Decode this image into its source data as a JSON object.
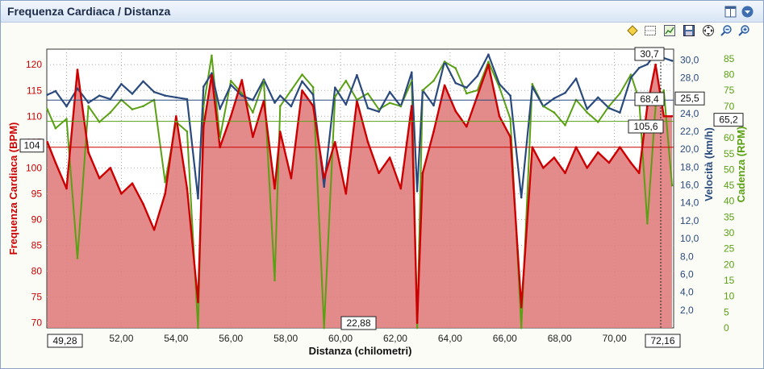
{
  "window": {
    "title": "Frequenza Cardiaca / Distanza"
  },
  "icons": [
    "layout-icon",
    "dropdown-icon",
    "diamond-marker-icon",
    "grid-icon",
    "chart-image-icon",
    "save-icon",
    "move-icon",
    "zoom-out-icon",
    "zoom-in-icon"
  ],
  "colors": {
    "heart_rate": "#cc0000",
    "heart_rate_fill": "#e07d7d",
    "speed": "#2a4a7e",
    "cadence": "#5aa014",
    "cadence_overlap": "#8a5a10",
    "background": "#fbfcf6"
  },
  "chart_data": {
    "type": "line",
    "title": "",
    "xlabel": "Distanza (chilometri)",
    "xlim": [
      49.28,
      72.16
    ],
    "x_ticks": [
      "50,00",
      "52,00",
      "54,00",
      "56,00",
      "58,00",
      "60,00",
      "62,00",
      "64,00",
      "66,00",
      "68,00",
      "70,00"
    ],
    "x_range_labels": {
      "start": "49,28",
      "end": "72,16"
    },
    "grid": true,
    "axes": {
      "heart_rate": {
        "label": "Frequenza Cardiaca (BPM)",
        "side": "left",
        "range": [
          69,
          123
        ],
        "ticks": [
          "70",
          "75",
          "80",
          "85",
          "90",
          "95",
          "100",
          "105",
          "110",
          "115",
          "120"
        ]
      },
      "speed": {
        "label": "Velocità (km/h)",
        "side": "right",
        "range": [
          0,
          31.2
        ],
        "ticks": [
          "2,0",
          "4,0",
          "6,0",
          "8,0",
          "10,0",
          "12,0",
          "14,0",
          "16,0",
          "18,0",
          "20,0",
          "22,0",
          "24,0",
          "26,0",
          "28,0",
          "30,0"
        ]
      },
      "cadence": {
        "label": "Cadenza (RPM)",
        "side": "right",
        "range": [
          0,
          88
        ],
        "ticks": [
          "0",
          "5",
          "10",
          "15",
          "20",
          "25",
          "30",
          "35",
          "40",
          "45",
          "50",
          "55",
          "60",
          "65",
          "70",
          "75",
          "80",
          "85"
        ]
      }
    },
    "markers": {
      "hr_avg": "104",
      "speed_avg": "25,5",
      "cadence_avg": "65,2",
      "bottom_label": "22,88",
      "cursor_speed": "30,7",
      "cursor_cadence": "68,4",
      "cursor_hr": "105,6"
    },
    "series": [
      {
        "name": "Frequenza Cardiaca",
        "axis": "heart_rate",
        "x": [
          49.3,
          49.6,
          50.0,
          50.4,
          50.8,
          51.2,
          51.6,
          52.0,
          52.4,
          52.8,
          53.2,
          53.6,
          54.0,
          54.4,
          54.8,
          55.0,
          55.3,
          55.6,
          56.0,
          56.4,
          56.8,
          57.2,
          57.6,
          57.8,
          58.2,
          58.6,
          59.0,
          59.4,
          59.8,
          60.2,
          60.6,
          61.0,
          61.4,
          61.8,
          62.2,
          62.6,
          62.8,
          63.0,
          63.4,
          63.8,
          64.2,
          64.6,
          65.0,
          65.4,
          65.8,
          66.2,
          66.6,
          67.0,
          67.4,
          67.8,
          68.2,
          68.6,
          69.0,
          69.4,
          69.8,
          70.2,
          70.6,
          70.9,
          71.2,
          71.5,
          71.8,
          72.1
        ],
        "values": [
          105,
          101,
          96,
          119,
          103,
          98,
          100,
          95,
          97,
          93,
          88,
          95,
          110,
          96,
          74,
          108,
          118,
          104,
          110,
          117,
          106,
          113,
          96,
          107,
          98,
          115,
          112,
          98,
          105,
          95,
          113,
          105,
          99,
          102,
          96,
          112,
          70,
          99,
          107,
          116,
          111,
          108,
          114,
          120,
          110,
          106,
          73,
          104,
          100,
          102,
          99,
          104,
          100,
          103,
          101,
          104,
          101,
          99,
          112,
          120,
          110,
          110
        ]
      },
      {
        "name": "Velocità",
        "axis": "speed",
        "x": [
          49.3,
          49.6,
          50.0,
          50.4,
          50.8,
          51.2,
          51.6,
          52.0,
          52.4,
          52.8,
          53.2,
          53.6,
          54.0,
          54.4,
          54.8,
          55.0,
          55.3,
          55.6,
          56.0,
          56.4,
          56.8,
          57.2,
          57.6,
          57.8,
          58.2,
          58.6,
          59.0,
          59.4,
          59.8,
          60.2,
          60.6,
          61.0,
          61.4,
          61.8,
          62.2,
          62.6,
          62.8,
          63.0,
          63.4,
          63.8,
          64.2,
          64.6,
          65.0,
          65.4,
          65.8,
          66.2,
          66.6,
          67.0,
          67.4,
          67.8,
          68.2,
          68.6,
          69.0,
          69.4,
          69.8,
          70.2,
          70.6,
          70.9,
          71.2,
          71.5,
          71.8,
          72.1
        ],
        "values": [
          26.1,
          26.5,
          24.8,
          26.8,
          25.2,
          26.0,
          25.6,
          27.3,
          26.2,
          27.6,
          26.4,
          26.0,
          25.8,
          25.6,
          14.5,
          27.0,
          28.5,
          24.5,
          27.2,
          26.0,
          25.5,
          27.8,
          25.2,
          26.0,
          24.8,
          27.6,
          26.1,
          15.8,
          26.9,
          25.0,
          28.3,
          24.6,
          24.2,
          26.4,
          24.8,
          28.6,
          15.3,
          26.6,
          24.9,
          29.8,
          27.4,
          26.9,
          28.2,
          30.6,
          27.3,
          26.0,
          14.6,
          27.0,
          24.8,
          25.7,
          26.3,
          27.9,
          24.5,
          25.8,
          24.6,
          24.1,
          28.0,
          29.1,
          29.5,
          30.7,
          30.2,
          29.9
        ]
      },
      {
        "name": "Cadenza",
        "axis": "cadence",
        "x": [
          49.3,
          49.6,
          50.0,
          50.4,
          50.8,
          51.2,
          51.6,
          52.0,
          52.4,
          52.8,
          53.2,
          53.6,
          54.0,
          54.4,
          54.8,
          55.0,
          55.3,
          55.6,
          56.0,
          56.4,
          56.8,
          57.2,
          57.6,
          57.8,
          58.2,
          58.6,
          59.0,
          59.4,
          59.8,
          60.2,
          60.6,
          61.0,
          61.4,
          61.8,
          62.2,
          62.6,
          62.8,
          63.0,
          63.4,
          63.8,
          64.2,
          64.6,
          65.0,
          65.4,
          65.8,
          66.2,
          66.6,
          67.0,
          67.4,
          67.8,
          68.2,
          68.6,
          69.0,
          69.4,
          69.8,
          70.2,
          70.6,
          70.9,
          71.2,
          71.5,
          71.8,
          72.1
        ],
        "values": [
          69,
          63,
          66,
          22,
          70,
          65,
          68,
          72,
          69,
          70,
          72,
          46,
          65,
          62,
          0,
          70,
          86,
          60,
          78,
          74,
          68,
          78,
          15,
          70,
          75,
          80,
          76,
          0,
          73,
          78,
          72,
          74,
          69,
          71,
          70,
          78,
          0,
          75,
          78,
          84,
          82,
          74,
          75,
          84,
          76,
          66,
          0,
          77,
          70,
          68,
          64,
          72,
          68,
          65,
          70,
          74,
          80,
          72,
          33,
          70,
          75,
          45
        ]
      }
    ]
  }
}
